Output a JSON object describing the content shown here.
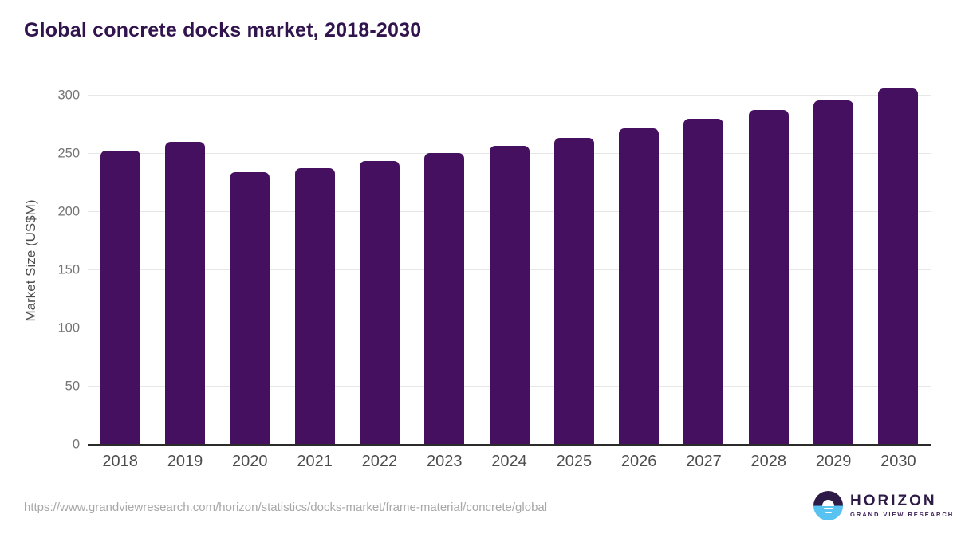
{
  "title": "Global concrete docks market, 2018-2030",
  "chart_data": {
    "type": "bar",
    "categories": [
      "2018",
      "2019",
      "2020",
      "2021",
      "2022",
      "2023",
      "2024",
      "2025",
      "2026",
      "2027",
      "2028",
      "2029",
      "2030"
    ],
    "values": [
      253,
      260,
      234,
      238,
      244,
      251,
      257,
      264,
      272,
      280,
      288,
      296,
      306
    ],
    "title": "Global concrete docks market, 2018-2030",
    "xlabel": "",
    "ylabel": "Market Size (US$M)",
    "ylim": [
      0,
      316
    ],
    "yticks": [
      0,
      50,
      100,
      150,
      200,
      250,
      300
    ],
    "grid": true,
    "legend": "none",
    "bar_color": "#451060"
  },
  "footer": {
    "source_url": "https://www.grandviewresearch.com/horizon/statistics/docks-market/frame-material/concrete/global",
    "logo_name": "HORIZON",
    "logo_subtitle": "GRAND VIEW RESEARCH"
  },
  "colors": {
    "title": "#31134d",
    "bar": "#451060",
    "gridline": "#e7e7e7",
    "axis_line": "#2b2b2b",
    "y_tick_label": "#757575",
    "x_label": "#4d4d4d",
    "url_text": "#a8a8a8",
    "logo_purple": "#2e1a47",
    "logo_blue": "#58c3f0"
  }
}
